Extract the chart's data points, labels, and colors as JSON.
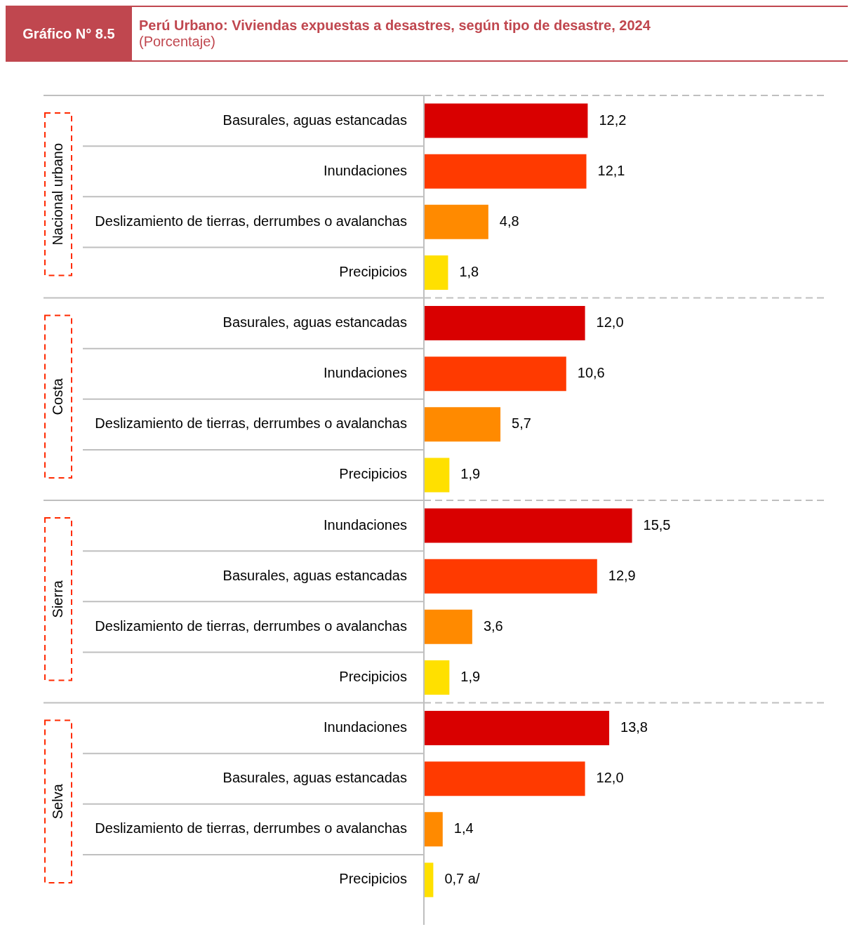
{
  "chart_data": {
    "type": "bar",
    "orientation": "horizontal",
    "title": "Perú Urbano: Viviendas expuestas a desastres, según tipo de desastre, 2024",
    "subtitle": "(Porcentaje)",
    "annotations": [
      "Gráfico N° 8.5",
      "Nacional urbano",
      "Costa",
      "Sierra",
      "Selva"
    ],
    "categories": [
      "Basurales, aguas estancadas",
      "Inundaciones",
      "Deslizamiento de tierras, derrumbes o avalanchas",
      "Precipicios",
      "Basurales, aguas estancadas",
      "Inundaciones",
      "Deslizamiento de tierras, derrumbes o avalanchas",
      "Precipicios",
      "Inundaciones",
      "Basurales, aguas estancadas",
      "Deslizamiento de tierras, derrumbes o avalanchas",
      "Precipicios",
      "Inundaciones",
      "Basurales, aguas estancadas",
      "Deslizamiento de tierras, derrumbes o avalanchas",
      "Precipicios"
    ],
    "values": [
      12.2,
      12.1,
      4.8,
      1.8,
      12.0,
      10.6,
      5.7,
      1.9,
      15.5,
      12.9,
      3.6,
      1.9,
      13.8,
      12.0,
      1.4,
      0.7
    ],
    "value_labels": [
      "12,2",
      "12,1",
      "4,8",
      "1,8",
      "12,0",
      "10,6",
      "5,7",
      "1,9",
      "15,5",
      "12,9",
      "3,6",
      "1,9",
      "13,8",
      "12,0",
      "1,4",
      "0,7 a/"
    ],
    "colors": [
      "#d90000",
      "#ff3a00",
      "#ff8a00",
      "#ffe000",
      "#d90000",
      "#ff3a00",
      "#ff8a00",
      "#ffe000",
      "#d90000",
      "#ff3a00",
      "#ff8a00",
      "#ffe000",
      "#d90000",
      "#ff3a00",
      "#ff8a00",
      "#ffe000"
    ],
    "xlim": [
      0,
      30
    ],
    "tick_labels": "y",
    "legend": false
  }
}
